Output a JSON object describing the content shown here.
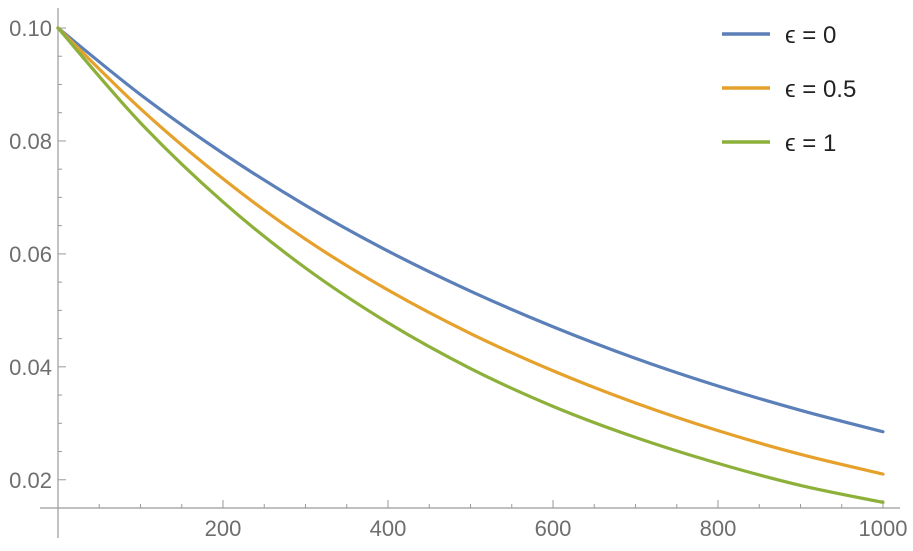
{
  "chart_data": {
    "type": "line",
    "title": "",
    "xlabel": "",
    "ylabel": "",
    "xlim": [
      0,
      1000
    ],
    "ylim": [
      0.015,
      0.1
    ],
    "x_ticks_major": [
      200,
      400,
      600,
      800,
      1000
    ],
    "x_tick_labels": [
      "200",
      "400",
      "600",
      "800",
      "1000"
    ],
    "y_ticks_major": [
      0.02,
      0.04,
      0.06,
      0.08,
      0.1
    ],
    "y_tick_labels": [
      "0.02",
      "0.04",
      "0.06",
      "0.08",
      "0.10"
    ],
    "grid": false,
    "legend_position": "top-right",
    "series": [
      {
        "name": "ϵ = 0",
        "color": "#5b7fb8",
        "x": [
          0,
          100,
          200,
          300,
          400,
          500,
          600,
          700,
          800,
          900,
          1000
        ],
        "y": [
          0.1,
          0.0882,
          0.0778,
          0.0686,
          0.0605,
          0.0534,
          0.0471,
          0.0415,
          0.0366,
          0.0323,
          0.0285
        ]
      },
      {
        "name": "ϵ = 0.5",
        "color": "#e5a12b",
        "x": [
          0,
          100,
          200,
          300,
          400,
          500,
          600,
          700,
          800,
          900,
          1000
        ],
        "y": [
          0.1,
          0.0857,
          0.0733,
          0.0626,
          0.0536,
          0.0459,
          0.0393,
          0.0336,
          0.0287,
          0.0245,
          0.021
        ]
      },
      {
        "name": "ϵ = 1",
        "color": "#8db03a",
        "x": [
          0,
          100,
          200,
          300,
          400,
          500,
          600,
          700,
          800,
          900,
          1000
        ],
        "y": [
          0.1,
          0.0832,
          0.0692,
          0.0575,
          0.0478,
          0.0397,
          0.033,
          0.0275,
          0.0229,
          0.019,
          0.016
        ]
      }
    ]
  }
}
